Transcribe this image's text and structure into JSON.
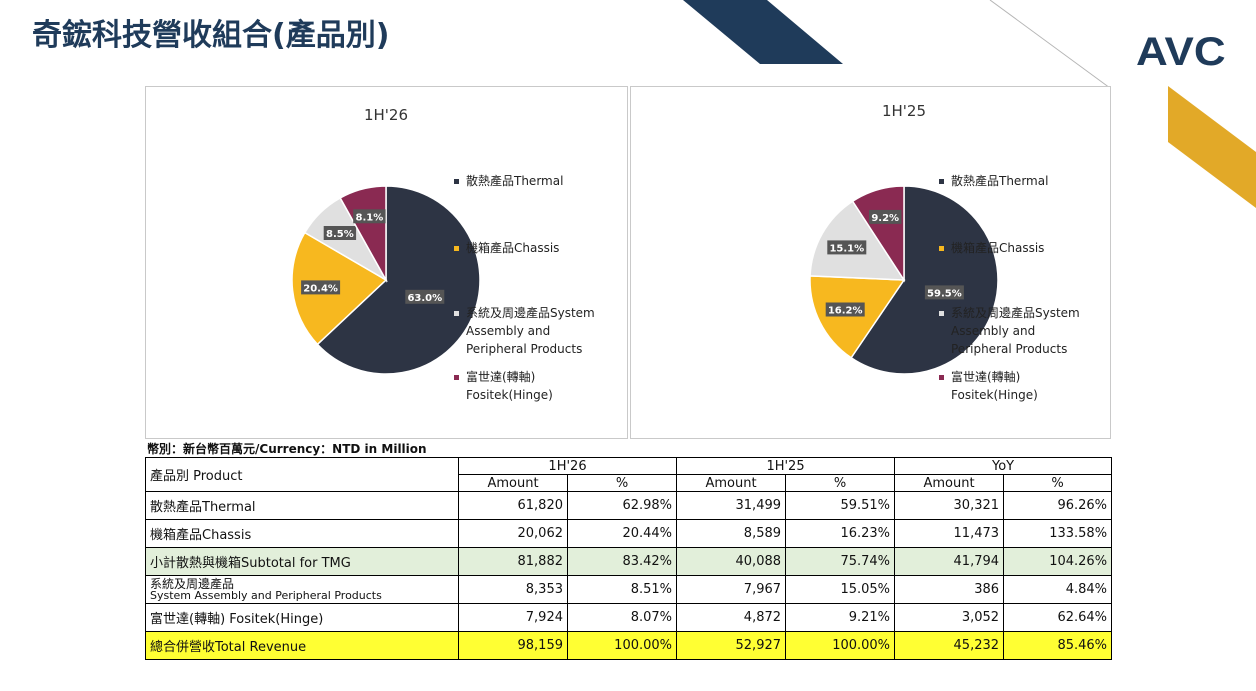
{
  "page": {
    "title": "奇鋐科技營收組合(產品別)",
    "logo": "AVC",
    "currency_note": "幣別：新台幣百萬元/Currency：NTD  in Million"
  },
  "colors": {
    "navy": "#1f3b5a",
    "gold": "#e2a928",
    "thermal": "#2d3444",
    "chassis": "#f7b81f",
    "system": "#e0e0e0",
    "fositek": "#8a2a52"
  },
  "chart_data": [
    {
      "type": "pie",
      "title": "1H'26",
      "categories": [
        "散熱產品Thermal",
        "機箱產品Chassis",
        "系統及周邊產品System Assembly and Peripheral Products",
        "富世達(轉軸) Fositek(Hinge)"
      ],
      "values": [
        63.0,
        20.4,
        8.5,
        8.1
      ],
      "labels": [
        "63.0%",
        "20.4%",
        "8.5%",
        "8.1%"
      ],
      "legend_placement": "right"
    },
    {
      "type": "pie",
      "title": "1H'25",
      "categories": [
        "散熱產品Thermal",
        "機箱產品Chassis",
        "系統及周邊產品System Assembly and Peripheral Products",
        "富世達(轉軸) Fositek(Hinge)"
      ],
      "values": [
        59.5,
        16.2,
        15.1,
        9.2
      ],
      "labels": [
        "59.5%",
        "16.2%",
        "15.1%",
        "9.2%"
      ],
      "legend_placement": "right"
    }
  ],
  "legend": [
    [
      "散熱產品Thermal"
    ],
    [
      "機箱產品Chassis"
    ],
    [
      "系統及周邊產品System",
      "Assembly and",
      "Peripheral Products"
    ],
    [
      "富世達(轉軸)",
      "Fositek(Hinge)"
    ]
  ],
  "table": {
    "product_header": "產品別 Product",
    "groups": [
      "1H'26",
      "1H'25",
      "YoY"
    ],
    "subheaders": [
      "Amount",
      "%",
      "Amount",
      "%",
      "Amount",
      "%"
    ],
    "rows": [
      {
        "label": "散熱產品Thermal",
        "cells": [
          "61,820",
          "62.98%",
          "31,499",
          "59.51%",
          "30,321",
          "96.26%"
        ]
      },
      {
        "label": "機箱產品Chassis",
        "cells": [
          "20,062",
          "20.44%",
          "8,589",
          "16.23%",
          "11,473",
          "133.58%"
        ]
      },
      {
        "label": "小計散熱與機箱Subtotal for TMG",
        "cells": [
          "81,882",
          "83.42%",
          "40,088",
          "75.74%",
          "41,794",
          "104.26%"
        ]
      },
      {
        "label": "系統及周邊產品",
        "label2": "System Assembly and Peripheral Products",
        "cells": [
          "8,353",
          "8.51%",
          "7,967",
          "15.05%",
          "386",
          "4.84%"
        ]
      },
      {
        "label": "富世達(轉軸) Fositek(Hinge)",
        "cells": [
          "7,924",
          "8.07%",
          "4,872",
          "9.21%",
          "3,052",
          "62.64%"
        ]
      },
      {
        "label": "總合併營收Total Revenue",
        "cells": [
          "98,159",
          "100.00%",
          "52,927",
          "100.00%",
          "45,232",
          "85.46%"
        ]
      }
    ]
  }
}
